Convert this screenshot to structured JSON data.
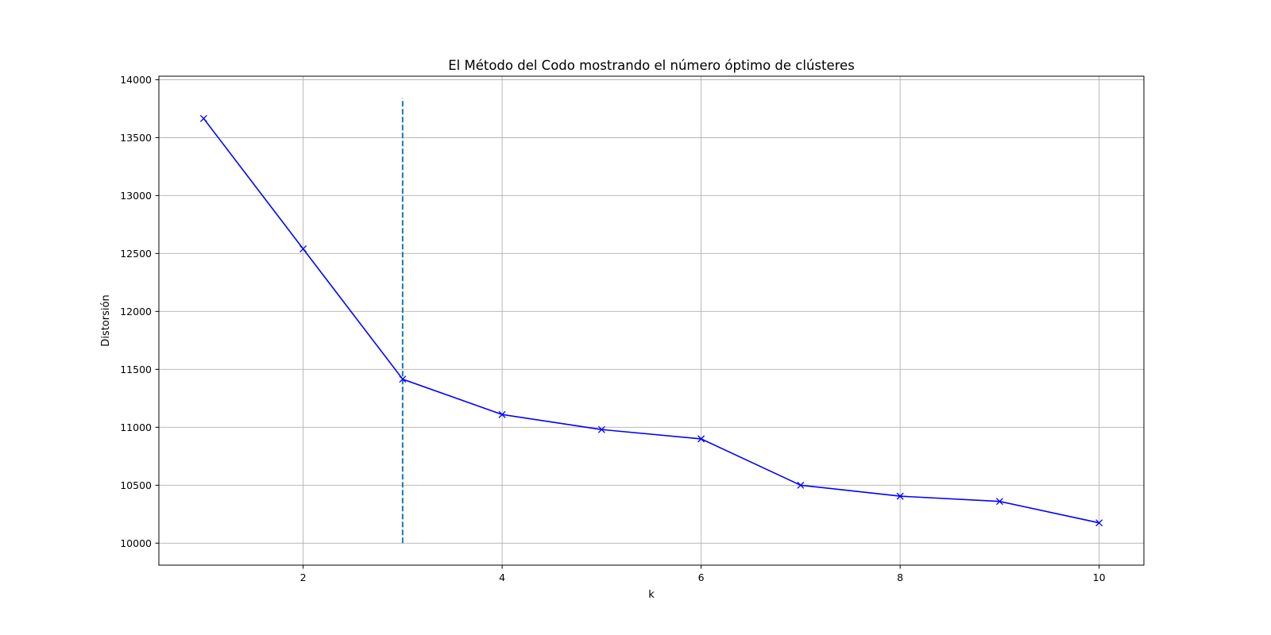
{
  "chart_data": {
    "type": "line",
    "title": "El Método del Codo mostrando el número óptimo de clústeres",
    "xlabel": "k",
    "ylabel": "Distorsión",
    "x": [
      1,
      2,
      3,
      4,
      5,
      6,
      7,
      8,
      9,
      10
    ],
    "series": [
      {
        "name": "Distorsión",
        "values": [
          13665,
          12540,
          11415,
          11110,
          10980,
          10900,
          10500,
          10405,
          10360,
          10175
        ],
        "color": "#0000ff",
        "marker": "x",
        "linestyle": "solid"
      }
    ],
    "reference_line": {
      "orientation": "vertical",
      "x": 3,
      "ymin": 10000,
      "ymax": 13840,
      "color": "#1f77b4",
      "linestyle": "dashed"
    },
    "xlim": [
      0.55,
      10.45
    ],
    "ylim": [
      9810,
      14030
    ],
    "xticks": [
      2,
      4,
      6,
      8,
      10
    ],
    "xtick_labels": [
      "2",
      "4",
      "6",
      "8",
      "10"
    ],
    "yticks": [
      10000,
      10500,
      11000,
      11500,
      12000,
      12500,
      13000,
      13500,
      14000
    ],
    "ytick_labels": [
      "10000",
      "10500",
      "11000",
      "11500",
      "12000",
      "12500",
      "13000",
      "13500",
      "14000"
    ],
    "grid": true,
    "legend": "none"
  }
}
